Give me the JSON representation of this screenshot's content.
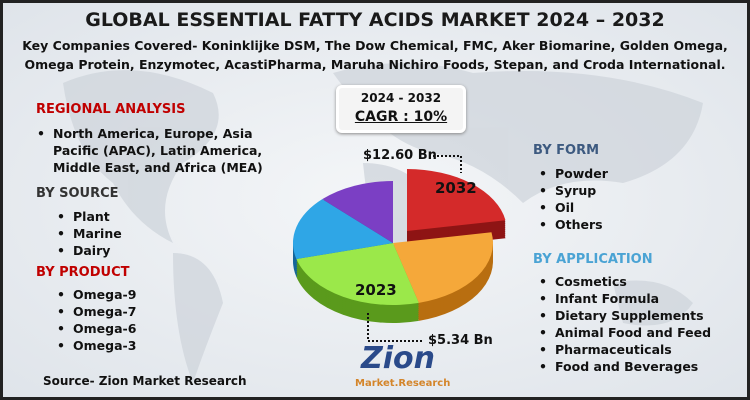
{
  "header": {
    "title": "GLOBAL ESSENTIAL FATTY ACIDS MARKET 2024 – 2032",
    "subtitle": [
      "Key Companies Covered- Koninklijke DSM, The Dow Chemical, FMC, Aker Biomarine, Golden Omega,",
      "Omega Protein, Enzymotec, AcastiPharma, Maruha Nichiro Foods, Stepan, and Croda International."
    ]
  },
  "regional": {
    "heading": "REGIONAL ANALYSIS",
    "text": "North America, Europe, Asia Pacific (APAC), Latin America, Middle East, and Africa (MEA)"
  },
  "source_seg": {
    "heading": "BY SOURCE",
    "items": [
      "Plant",
      "Marine",
      "Dairy"
    ]
  },
  "product": {
    "heading": "BY PRODUCT",
    "items": [
      "Omega-9",
      "Omega-7",
      "Omega-6",
      "Omega-3"
    ]
  },
  "form": {
    "heading": "BY FORM",
    "items": [
      "Powder",
      "Syrup",
      "Oil",
      "Others"
    ]
  },
  "application": {
    "heading": "BY APPLICATION",
    "items": [
      "Cosmetics",
      "Infant Formula",
      "Dietary Supplements",
      "Animal Food and Feed",
      "Pharmaceuticals",
      "Food and Beverages"
    ]
  },
  "cagr": {
    "period": "2024 - 2032",
    "label": "CAGR : 10%"
  },
  "pie": {
    "top_value": "$12.60 Bn",
    "top_year": "2032",
    "bottom_year": "2023",
    "bottom_value": "$5.34 Bn"
  },
  "logo": {
    "name": "Zion",
    "sub": "Market.Research"
  },
  "footer": {
    "source": "Source- Zion Market Research"
  }
}
